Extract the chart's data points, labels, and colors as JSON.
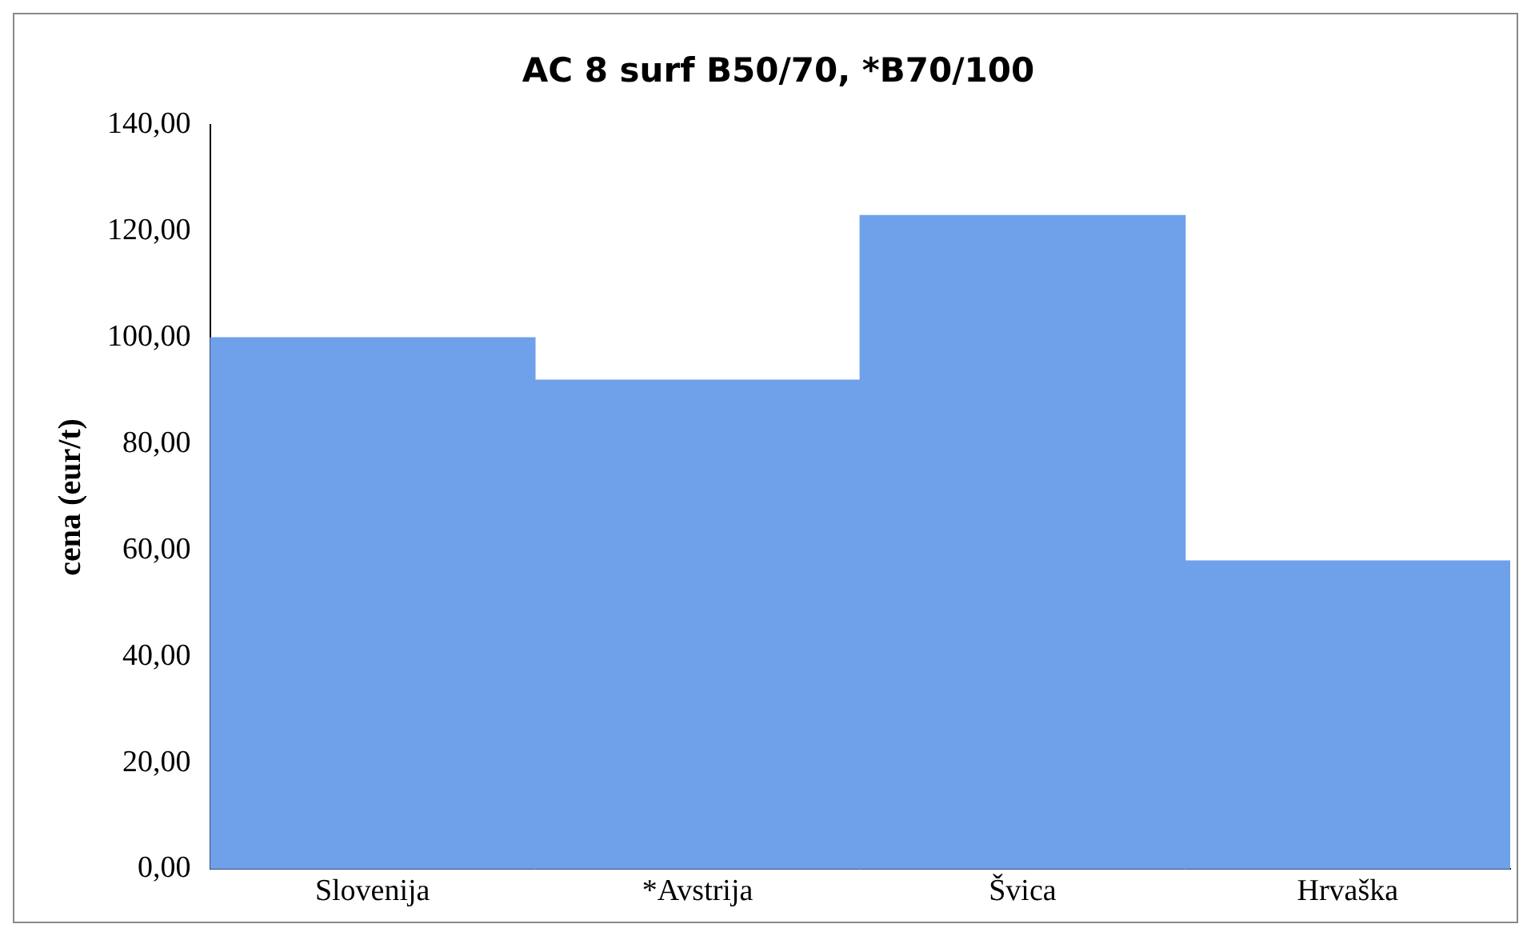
{
  "chart_data": {
    "type": "bar",
    "title": "AC 8 surf B50/70, *B70/100",
    "ylabel": "cena (eur/t)",
    "categories": [
      "Slovenija",
      "*Avstrija",
      "Švica",
      "Hrvaška"
    ],
    "values": [
      100,
      92,
      123,
      58
    ],
    "color": "#6fa0ea",
    "ylim": [
      0,
      140
    ],
    "yticks": [
      {
        "value": 0,
        "label": "0,00"
      },
      {
        "value": 20,
        "label": "20,00"
      },
      {
        "value": 40,
        "label": "40,00"
      },
      {
        "value": 60,
        "label": "60,00"
      },
      {
        "value": 80,
        "label": "80,00"
      },
      {
        "value": 100,
        "label": "100,00"
      },
      {
        "value": 120,
        "label": "120,00"
      },
      {
        "value": 140,
        "label": "140,00"
      }
    ],
    "grid": false,
    "legend": false
  }
}
